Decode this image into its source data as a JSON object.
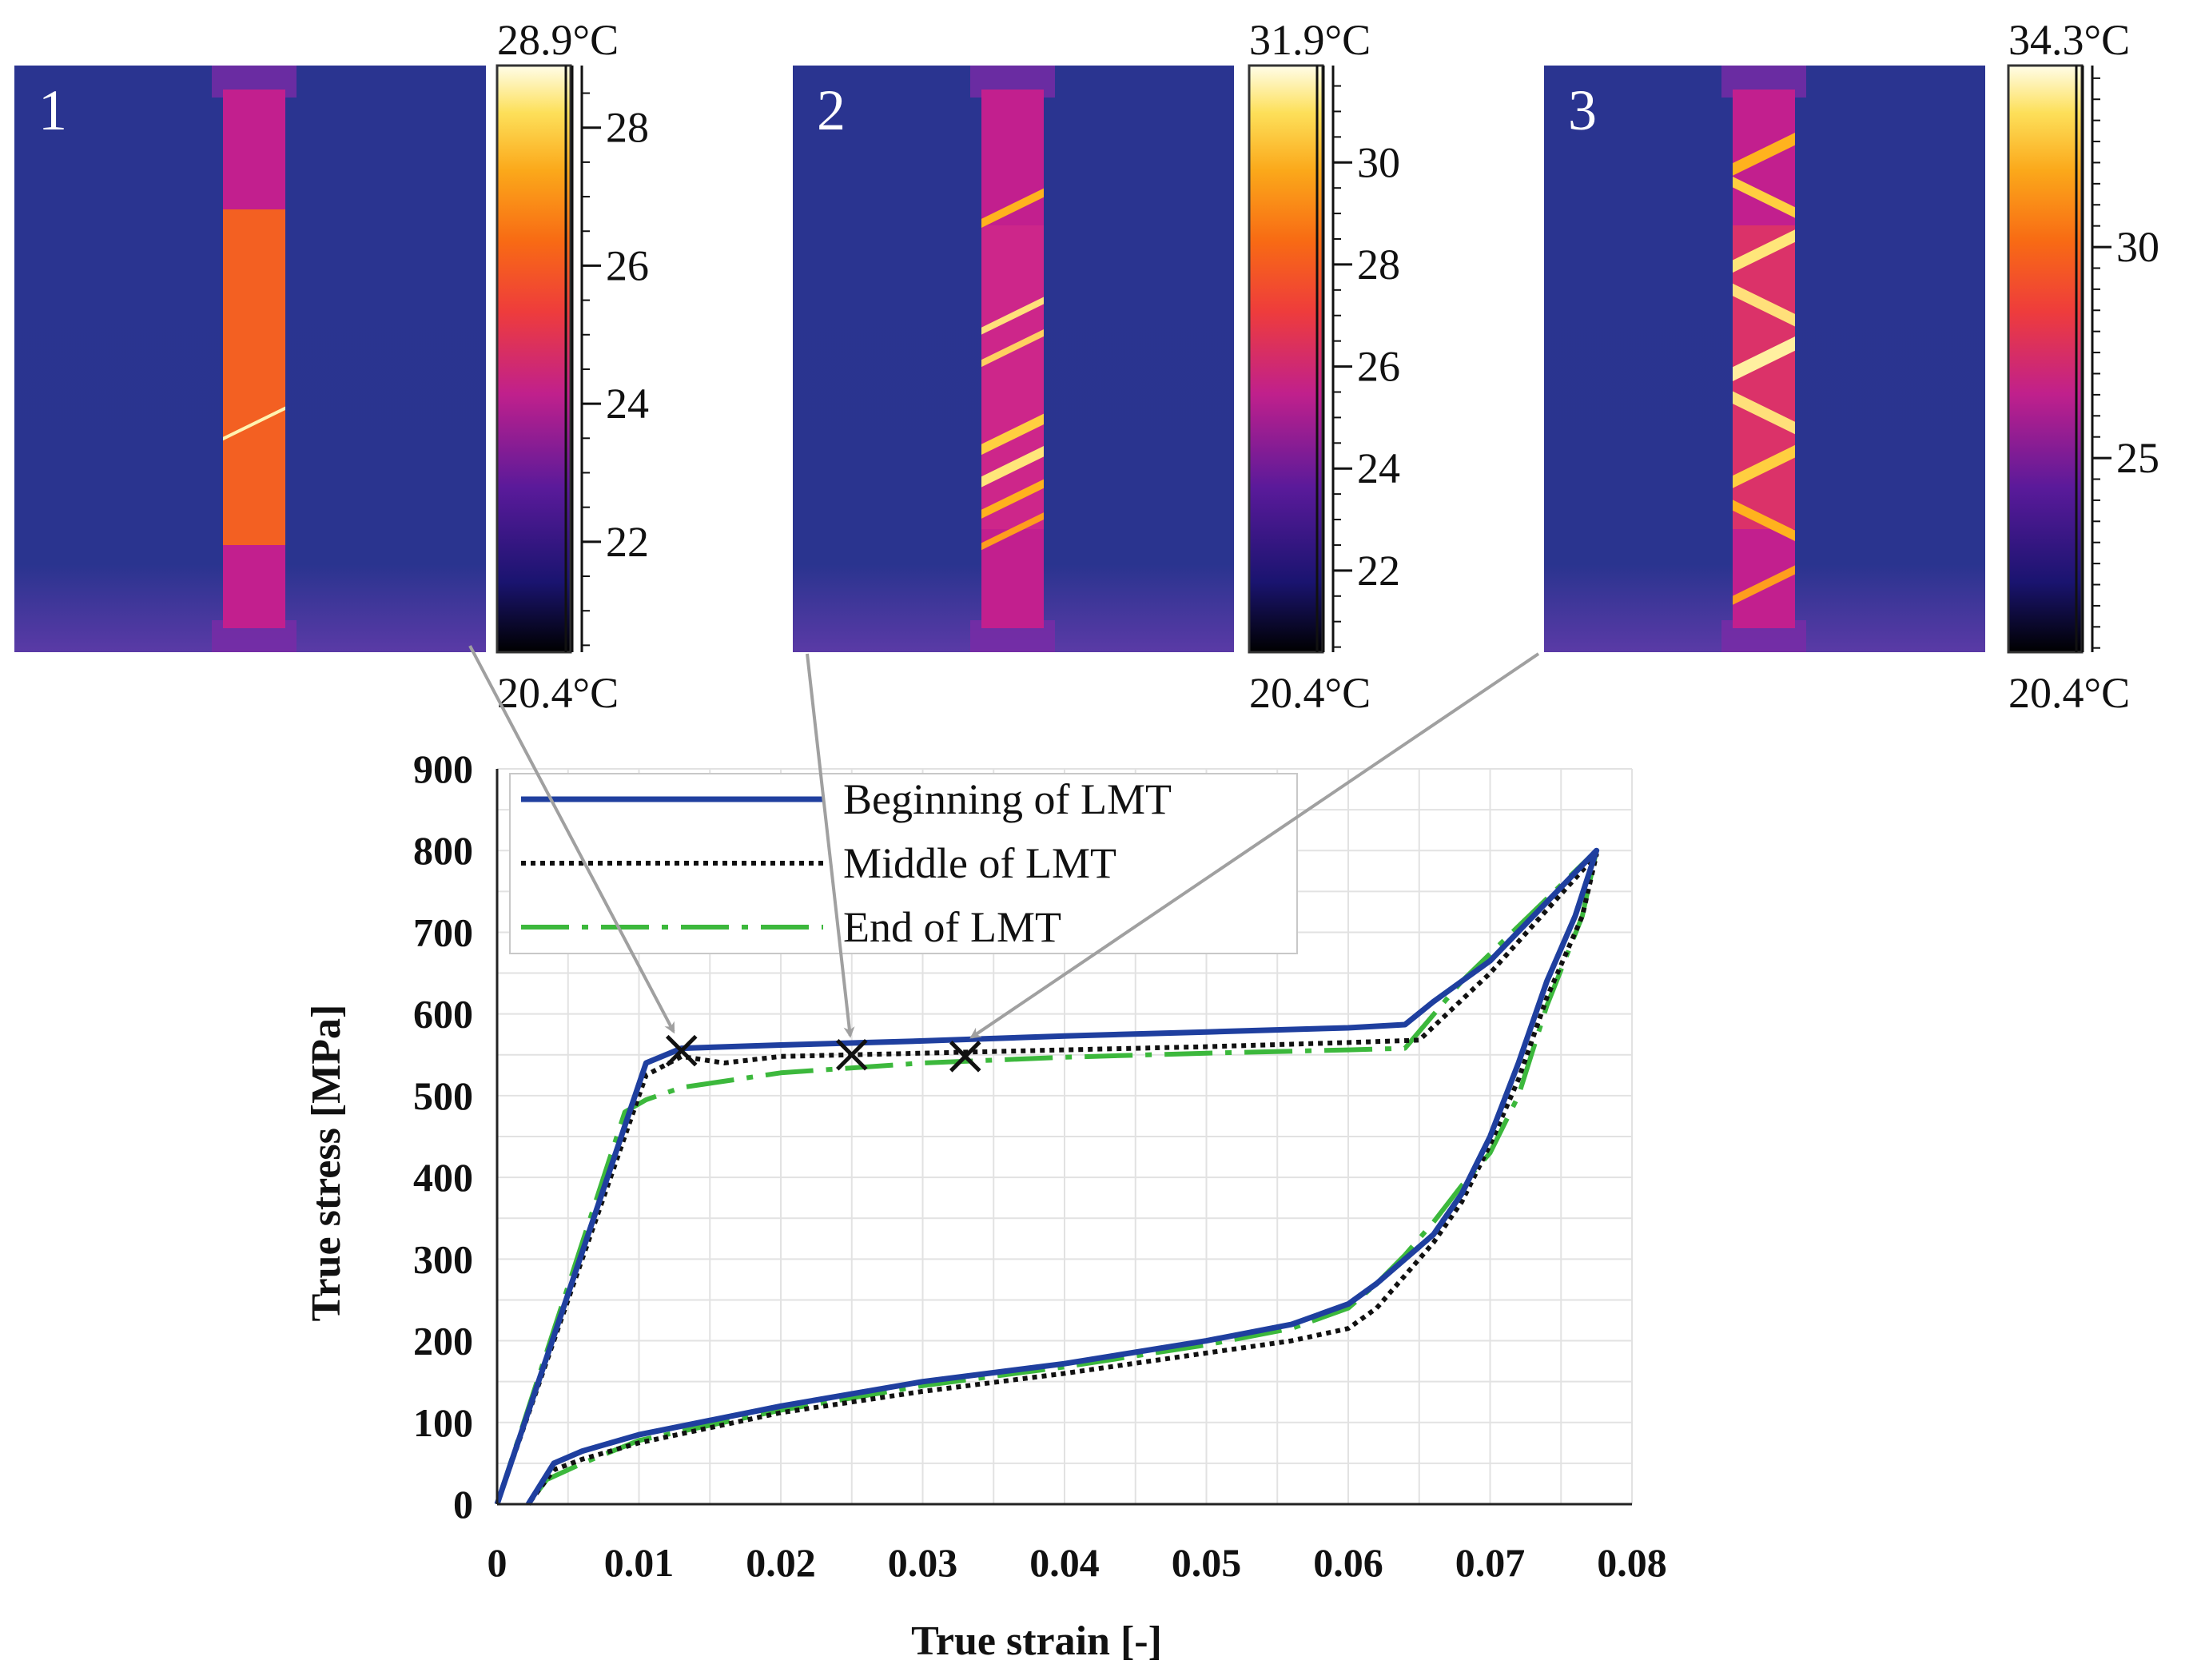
{
  "thermograms": [
    {
      "id": "1",
      "max_label": "28.9°C",
      "min_label": "20.4°C",
      "scale_min": 20.4,
      "scale_max": 28.9,
      "ticks": [
        "28",
        "26",
        "24",
        "22"
      ],
      "tick_values": [
        28,
        26,
        24,
        22
      ],
      "points_to": {
        "strain": 0.013,
        "stress": 555
      }
    },
    {
      "id": "2",
      "max_label": "31.9°C",
      "min_label": "20.4°C",
      "scale_min": 20.4,
      "scale_max": 31.9,
      "ticks": [
        "30",
        "28",
        "26",
        "24",
        "22"
      ],
      "tick_values": [
        30,
        28,
        26,
        24,
        22
      ],
      "points_to": {
        "strain": 0.025,
        "stress": 550
      }
    },
    {
      "id": "3",
      "max_label": "34.3°C",
      "min_label": "20.4°C",
      "scale_min": 20.4,
      "scale_max": 34.3,
      "ticks": [
        "30",
        "25"
      ],
      "tick_values": [
        30,
        25
      ],
      "points_to": {
        "strain": 0.033,
        "stress": 548
      }
    }
  ],
  "chart_data": {
    "type": "line",
    "xlabel": "True strain [-]",
    "ylabel": "True stress [MPa]",
    "xlim": [
      0,
      0.08
    ],
    "ylim": [
      0,
      900
    ],
    "xticks": [
      0,
      0.01,
      0.02,
      0.03,
      0.04,
      0.05,
      0.06,
      0.07,
      0.08
    ],
    "xtick_labels": [
      "0",
      "0.01",
      "0.02",
      "0.03",
      "0.04",
      "0.05",
      "0.06",
      "0.07",
      "0.08"
    ],
    "yticks": [
      0,
      100,
      200,
      300,
      400,
      500,
      600,
      700,
      800,
      900
    ],
    "ytick_labels": [
      "0",
      "100",
      "200",
      "300",
      "400",
      "500",
      "600",
      "700",
      "800",
      "900"
    ],
    "grid": true,
    "legend_position": "top-left",
    "series": [
      {
        "name": "Beginning of LMT",
        "color": "#1f3f9f",
        "style": "solid",
        "points": [
          [
            0,
            0
          ],
          [
            0.0105,
            540
          ],
          [
            0.013,
            558
          ],
          [
            0.02,
            562
          ],
          [
            0.03,
            567
          ],
          [
            0.04,
            573
          ],
          [
            0.05,
            578
          ],
          [
            0.06,
            583
          ],
          [
            0.064,
            587
          ],
          [
            0.066,
            615
          ],
          [
            0.07,
            665
          ],
          [
            0.0775,
            800
          ],
          [
            0.076,
            720
          ],
          [
            0.074,
            640
          ],
          [
            0.072,
            540
          ],
          [
            0.07,
            450
          ],
          [
            0.068,
            380
          ],
          [
            0.066,
            330
          ],
          [
            0.064,
            300
          ],
          [
            0.062,
            270
          ],
          [
            0.06,
            245
          ],
          [
            0.056,
            220
          ],
          [
            0.05,
            200
          ],
          [
            0.04,
            172
          ],
          [
            0.03,
            150
          ],
          [
            0.02,
            120
          ],
          [
            0.01,
            85
          ],
          [
            0.006,
            65
          ],
          [
            0.004,
            50
          ],
          [
            0.0022,
            0
          ]
        ]
      },
      {
        "name": "Middle of LMT",
        "color": "#111111",
        "style": "dotted",
        "points": [
          [
            0,
            0
          ],
          [
            0.0105,
            525
          ],
          [
            0.013,
            548
          ],
          [
            0.016,
            540
          ],
          [
            0.02,
            548
          ],
          [
            0.03,
            552
          ],
          [
            0.04,
            556
          ],
          [
            0.05,
            560
          ],
          [
            0.06,
            565
          ],
          [
            0.065,
            568
          ],
          [
            0.07,
            650
          ],
          [
            0.0775,
            795
          ],
          [
            0.0765,
            720
          ],
          [
            0.074,
            620
          ],
          [
            0.072,
            520
          ],
          [
            0.07,
            440
          ],
          [
            0.068,
            370
          ],
          [
            0.066,
            320
          ],
          [
            0.064,
            280
          ],
          [
            0.062,
            240
          ],
          [
            0.06,
            215
          ],
          [
            0.056,
            200
          ],
          [
            0.05,
            185
          ],
          [
            0.04,
            160
          ],
          [
            0.03,
            138
          ],
          [
            0.02,
            112
          ],
          [
            0.01,
            75
          ],
          [
            0.006,
            55
          ],
          [
            0.004,
            42
          ],
          [
            0.0022,
            0
          ]
        ]
      },
      {
        "name": "End of LMT",
        "color": "#3cb83c",
        "style": "dashdot",
        "points": [
          [
            0,
            0
          ],
          [
            0.009,
            480
          ],
          [
            0.0105,
            495
          ],
          [
            0.013,
            510
          ],
          [
            0.02,
            528
          ],
          [
            0.03,
            540
          ],
          [
            0.04,
            547
          ],
          [
            0.05,
            552
          ],
          [
            0.06,
            556
          ],
          [
            0.064,
            558
          ],
          [
            0.068,
            640
          ],
          [
            0.0775,
            800
          ],
          [
            0.0765,
            720
          ],
          [
            0.074,
            610
          ],
          [
            0.072,
            500
          ],
          [
            0.07,
            430
          ],
          [
            0.068,
            390
          ],
          [
            0.066,
            345
          ],
          [
            0.064,
            305
          ],
          [
            0.062,
            270
          ],
          [
            0.06,
            240
          ],
          [
            0.056,
            215
          ],
          [
            0.05,
            195
          ],
          [
            0.04,
            168
          ],
          [
            0.03,
            145
          ],
          [
            0.02,
            115
          ],
          [
            0.01,
            78
          ],
          [
            0.006,
            50
          ],
          [
            0.0035,
            30
          ],
          [
            0.0022,
            0
          ]
        ]
      }
    ],
    "markers": [
      [
        0.013,
        555
      ],
      [
        0.025,
        550
      ],
      [
        0.033,
        548
      ]
    ]
  }
}
